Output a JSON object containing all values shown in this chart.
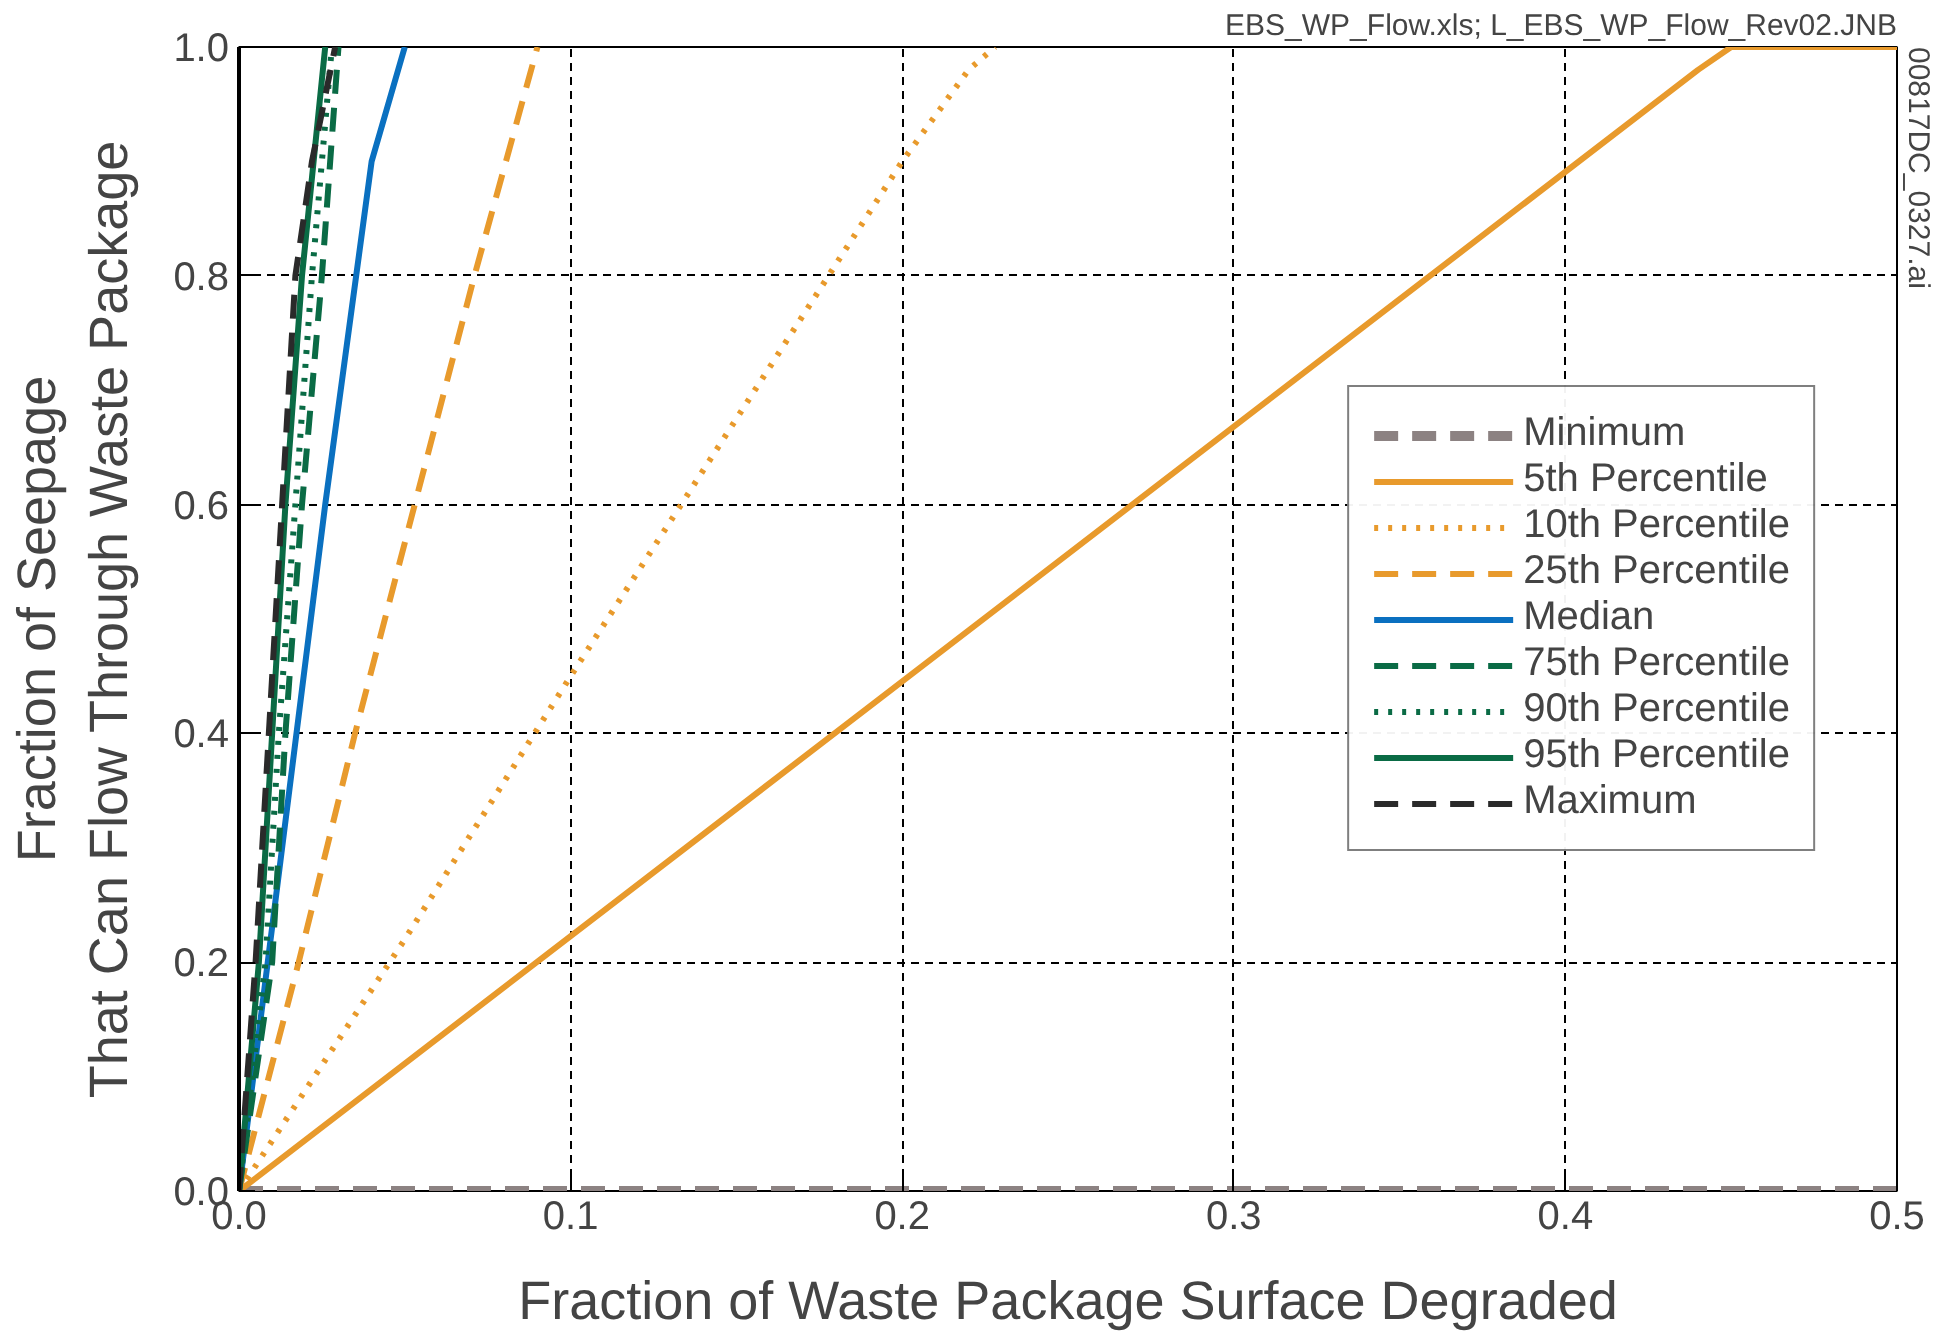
{
  "chart_data": {
    "type": "line",
    "xlabel": "Fraction of Waste Package Surface Degraded",
    "ylabel": "Fraction of Seepage\nThat Can Flow Through Waste Package",
    "annotations": [
      "EBS_WP_Flow.xls; L_EBS_WP_Flow_Rev02.JNB",
      "00817DC_0327.ai"
    ],
    "xlim": [
      0,
      0.5
    ],
    "ylim": [
      0,
      1
    ],
    "xticks": [
      {
        "value": 0,
        "label": "0.0"
      },
      0.1,
      0.2,
      0.3,
      0.4,
      0.5
    ],
    "yticks": [
      {
        "value": 0,
        "label": "0.0"
      },
      0.2,
      0.4,
      0.6,
      0.8,
      {
        "value": 1,
        "label": "1.0"
      }
    ],
    "grid": true,
    "legend": "right",
    "marker": "none",
    "series": [
      {
        "name": "Minimum",
        "color": "#8c8282",
        "line_style": "dashed",
        "x": [
          0,
          0.5
        ],
        "values": [
          0,
          0
        ]
      },
      {
        "name": "5th Percentile",
        "color": "#e89a2c",
        "line_style": "solid",
        "x": [
          0,
          0.44,
          0.45,
          0.5
        ],
        "values": [
          0,
          0.98,
          1,
          1
        ]
      },
      {
        "name": "10th Percentile",
        "color": "#e89a2c",
        "line_style": "dotted",
        "x": [
          0,
          0.05,
          0.1,
          0.2,
          0.22,
          0.228
        ],
        "values": [
          0,
          0.22,
          0.45,
          0.9,
          0.98,
          1
        ]
      },
      {
        "name": "25th Percentile",
        "color": "#e89a2c",
        "line_style": "dashed",
        "x": [
          0,
          0.018,
          0.035,
          0.053,
          0.071,
          0.09
        ],
        "values": [
          0,
          0.2,
          0.4,
          0.6,
          0.8,
          1
        ]
      },
      {
        "name": "Median",
        "color": "#0a70c0",
        "line_style": "solid",
        "x": [
          0,
          0.026,
          0.04,
          0.05
        ],
        "values": [
          0,
          0.6,
          0.9,
          1
        ]
      },
      {
        "name": "75th Percentile",
        "color": "#0a6b45",
        "line_style": "dashed",
        "x": [
          0,
          0.01,
          0.014,
          0.019,
          0.025,
          0.03
        ],
        "values": [
          0,
          0.2,
          0.4,
          0.6,
          0.8,
          1
        ]
      },
      {
        "name": "90th Percentile",
        "color": "#0a6b45",
        "line_style": "dotted",
        "x": [
          0,
          0.008,
          0.012,
          0.017,
          0.022,
          0.028
        ],
        "values": [
          0,
          0.2,
          0.4,
          0.6,
          0.8,
          1
        ]
      },
      {
        "name": "95th Percentile",
        "color": "#0a6b45",
        "line_style": "solid",
        "x": [
          0,
          0.006,
          0.01,
          0.014,
          0.019,
          0.026
        ],
        "values": [
          0,
          0.2,
          0.4,
          0.6,
          0.8,
          1
        ]
      },
      {
        "name": "Maximum",
        "color": "#2a2a2a",
        "line_style": "dashed",
        "x": [
          0,
          0.005,
          0.009,
          0.013,
          0.017,
          0.022,
          0.029
        ],
        "values": [
          0,
          0.2,
          0.4,
          0.6,
          0.8,
          0.9,
          1
        ]
      }
    ]
  }
}
